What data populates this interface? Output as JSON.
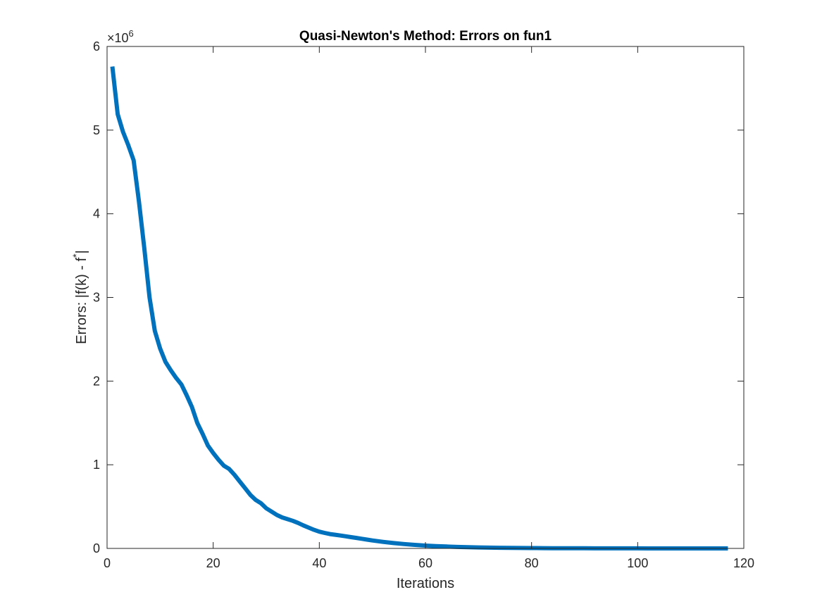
{
  "chart_data": {
    "type": "line",
    "title": "Quasi-Newton's Method: Errors on fun1",
    "xlabel": "Iterations",
    "ylabel": {
      "main": "Errors: |f(k) - f",
      "superscript": "*",
      "tail": "|"
    },
    "xlim": [
      0,
      120
    ],
    "ylim": [
      0,
      6000000
    ],
    "x_ticks": [
      "0",
      "20",
      "40",
      "60",
      "80",
      "100",
      "120"
    ],
    "y_ticks": [
      "0",
      "1",
      "2",
      "3",
      "4",
      "5",
      "6"
    ],
    "y_multiplier": {
      "base": "×10",
      "exponent": "6"
    },
    "grid": false,
    "line_color": "#0072BD",
    "series": [
      {
        "x": [
          1,
          2,
          3,
          4,
          5,
          6,
          7,
          8,
          9,
          10,
          11,
          12,
          13,
          14,
          15,
          16,
          17,
          18,
          19,
          20,
          21,
          22,
          23,
          24,
          25,
          26,
          27,
          28,
          29,
          30,
          31,
          32,
          33,
          34,
          35,
          36,
          37,
          38,
          39,
          40,
          41,
          42,
          43,
          44,
          45,
          46,
          47,
          48,
          49,
          50,
          52,
          54,
          56,
          58,
          60,
          62,
          64,
          66,
          68,
          70,
          72,
          74,
          76,
          78,
          80,
          82,
          84,
          86,
          88,
          90,
          92,
          94,
          96,
          98,
          100,
          102,
          104,
          106,
          108,
          110,
          112,
          114,
          117
        ],
        "y": [
          5760000,
          5190000,
          4980000,
          4820000,
          4640000,
          4150000,
          3600000,
          3000000,
          2600000,
          2390000,
          2230000,
          2130000,
          2040000,
          1960000,
          1830000,
          1690000,
          1500000,
          1370000,
          1230000,
          1140000,
          1060000,
          990000,
          950000,
          880000,
          800000,
          720000,
          640000,
          580000,
          540000,
          480000,
          440000,
          400000,
          370000,
          350000,
          330000,
          305000,
          275000,
          248000,
          222000,
          200000,
          185000,
          172000,
          163000,
          154000,
          145000,
          135000,
          125000,
          115000,
          105000,
          95000,
          78000,
          64000,
          52000,
          42000,
          34000,
          28000,
          23000,
          18000,
          15000,
          12000,
          9500,
          7500,
          6000,
          5000,
          4000,
          3200,
          2600,
          2100,
          1700,
          1400,
          1100,
          900,
          700,
          550,
          450,
          350,
          280,
          220,
          170,
          130,
          100,
          80,
          60
        ]
      }
    ]
  }
}
